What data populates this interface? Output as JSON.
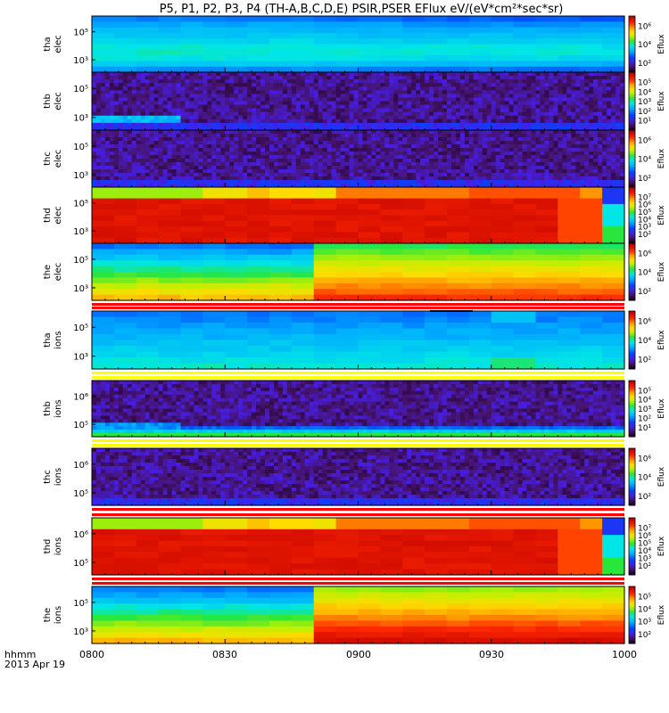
{
  "title": "P5, P1, P2, P3, P4 (TH-A,B,C,D,E) PSIR,PSER EFlux eV/(eV*cm²*sec*sr)",
  "time_axis": {
    "ticks": [
      "0800",
      "0830",
      "0900",
      "0930",
      "1000"
    ],
    "label_line1": "hhmm",
    "label_line2": "2013 Apr 19"
  },
  "colorbar_label": "Eflux",
  "chart_data": {
    "type": "heatmap",
    "x": [
      "0800",
      "0830",
      "0900",
      "0930",
      "1000"
    ],
    "panels": [
      {
        "label": [
          "tha",
          "elec"
        ],
        "ylabels": [
          "10⁵",
          "10³"
        ],
        "cbar_ticks": [
          "10⁶",
          "10⁴",
          "10²"
        ],
        "style": "smooth_e",
        "hist": [
          [
            0.3,
            0.38,
            0.42,
            0.48,
            0.45,
            0.3
          ],
          [
            0.3,
            0.38,
            0.42,
            0.48,
            0.45,
            0.3
          ],
          [
            0.29,
            0.38,
            0.42,
            0.48,
            0.45,
            0.3
          ],
          [
            0.28,
            0.38,
            0.42,
            0.48,
            0.45,
            0.29
          ],
          [
            0.27,
            0.37,
            0.42,
            0.48,
            0.44,
            0.28
          ],
          [
            0.27,
            0.37,
            0.41,
            0.47,
            0.44,
            0.27
          ],
          [
            0.26,
            0.36,
            0.41,
            0.47,
            0.43,
            0.26
          ],
          [
            0.26,
            0.36,
            0.41,
            0.47,
            0.43,
            0.26
          ],
          [
            0.25,
            0.36,
            0.41,
            0.47,
            0.43,
            0.25
          ],
          [
            0.25,
            0.36,
            0.4,
            0.46,
            0.42,
            0.25
          ]
        ]
      },
      {
        "label": [
          "thb",
          "elec"
        ],
        "ylabels": [
          "10⁵",
          "10³"
        ],
        "cbar_ticks": [
          "10⁵",
          "10⁴",
          "10³",
          "10²",
          "10¹"
        ],
        "style": "noise",
        "strip": {
          "end": "0820",
          "value": 0.35
        }
      },
      {
        "label": [
          "thc",
          "elec"
        ],
        "ylabels": [
          "10⁵",
          "10³"
        ],
        "cbar_ticks": [
          "10⁶",
          "10⁴",
          "10²"
        ],
        "style": "noise"
      },
      {
        "label": [
          "thd",
          "elec"
        ],
        "ylabels": [
          "10⁵",
          "10³"
        ],
        "cbar_ticks": [
          "10⁷",
          "10⁶",
          "10⁵",
          "10⁴",
          "10³",
          "10²"
        ],
        "style": "block_d",
        "band": [
          0.62,
          0.62,
          0.62,
          0.62,
          0.7,
          0.7,
          0.75,
          0.72,
          0.7,
          0.82,
          0.82,
          0.82,
          0.82,
          0.82,
          0.85,
          0.85,
          0.85,
          0.85,
          0.8,
          0.3
        ]
      },
      {
        "label": [
          "the",
          "elec"
        ],
        "ylabels": [
          "10⁵",
          "10³"
        ],
        "cbar_ticks": [
          "10⁶",
          "10⁴",
          "10²"
        ],
        "style": "step_e",
        "change": "0852"
      },
      {
        "label": [
          "tha",
          "ions"
        ],
        "ylabels": [
          "10⁵",
          "10³"
        ],
        "cbar_ticks": [
          "10⁶",
          "10⁴",
          "10²"
        ],
        "style": "smooth_i"
      },
      {
        "label": [
          "thb",
          "ions"
        ],
        "ylabels": [
          "10⁶",
          "10⁵"
        ],
        "cbar_ticks": [
          "10⁵",
          "10⁴",
          "10³",
          "10²",
          "10¹"
        ],
        "style": "noise_i",
        "strip": {
          "end": "0820",
          "value": 0.3
        }
      },
      {
        "label": [
          "thc",
          "ions"
        ],
        "ylabels": [
          "10⁶",
          "10⁵"
        ],
        "cbar_ticks": [
          "10⁶",
          "10⁴",
          "10²"
        ],
        "style": "noise"
      },
      {
        "label": [
          "thd",
          "ions"
        ],
        "ylabels": [
          "10⁶",
          "10⁵"
        ],
        "cbar_ticks": [
          "10⁷",
          "10⁶",
          "10⁵",
          "10⁴",
          "10³",
          "10²"
        ],
        "style": "block_d",
        "band": [
          0.62,
          0.62,
          0.62,
          0.62,
          0.7,
          0.7,
          0.75,
          0.72,
          0.7,
          0.82,
          0.82,
          0.82,
          0.82,
          0.82,
          0.85,
          0.85,
          0.85,
          0.85,
          0.8,
          0.3
        ]
      },
      {
        "label": [
          "the",
          "ions"
        ],
        "ylabels": [
          "10⁵",
          "10³"
        ],
        "cbar_ticks": [
          "10⁵",
          "10⁴",
          "10³",
          "10²"
        ],
        "style": "step_i",
        "change": "0852"
      }
    ]
  }
}
